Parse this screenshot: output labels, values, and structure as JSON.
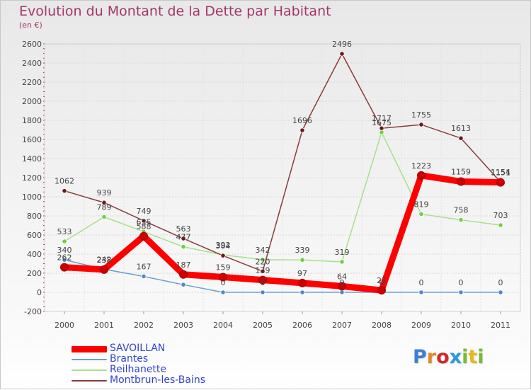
{
  "title": "Evolution du Montant de la Dette par Habitant",
  "subtitle": "(en €)",
  "logo": {
    "text": "Proxiti",
    "letters": [
      "P",
      "r",
      "o",
      "x",
      "i",
      "t",
      "i"
    ]
  },
  "chart_data": {
    "type": "line",
    "title": "Evolution du Montant de la Dette par Habitant",
    "ylabel": "(en €)",
    "xlabel": "",
    "ylim": [
      -200,
      2600
    ],
    "yticks": [
      -200,
      0,
      200,
      400,
      600,
      800,
      1000,
      1200,
      1400,
      1600,
      1800,
      2000,
      2200,
      2400,
      2600
    ],
    "categories": [
      "2000",
      "2001",
      "2002",
      "2003",
      "2004",
      "2005",
      "2006",
      "2007",
      "2008",
      "2009",
      "2010",
      "2011"
    ],
    "grid": true,
    "legend_position": "bottom-left",
    "series": [
      {
        "name": "SAVOILLAN",
        "color": "#ff0000",
        "marker": "#cc0000",
        "emphasis": true,
        "values": [
          262,
          238,
          588,
          187,
          159,
          129,
          97,
          64,
          21,
          1223,
          1159,
          1151
        ]
      },
      {
        "name": "Brantes",
        "color": "#6b9fd1",
        "marker": "#4f8ac6",
        "emphasis": false,
        "values": [
          340,
          242,
          167,
          80,
          0,
          0,
          0,
          0,
          0,
          0,
          0,
          0
        ]
      },
      {
        "name": "Reilhanette",
        "color": "#a8e08a",
        "marker": "#6fcf3f",
        "emphasis": false,
        "values": [
          533,
          789,
          635,
          477,
          392,
          342,
          339,
          319,
          1675,
          819,
          758,
          703
        ]
      },
      {
        "name": "Montbrun-les-Bains",
        "color": "#8b3a3a",
        "marker": "#6b1a1a",
        "emphasis": false,
        "values": [
          1062,
          939,
          749,
          563,
          384,
          220,
          1696,
          2496,
          1717,
          1755,
          1613,
          1154
        ]
      }
    ],
    "data_labels": [
      {
        "series": "Montbrun-les-Bains",
        "text": [
          "1062",
          "939",
          "749",
          "563",
          "384",
          "220",
          "1696",
          "2496",
          "1717",
          "1755",
          "1613",
          "1154"
        ]
      },
      {
        "series": "Reilhanette",
        "text": [
          "533",
          "789",
          "635",
          "477",
          "392",
          "342",
          "339",
          "319",
          "1675",
          "819",
          "758",
          "703"
        ]
      },
      {
        "series": "Brantes",
        "text": [
          "340",
          "242",
          "167",
          "",
          "0",
          "0",
          "",
          "0",
          "0",
          "0",
          "0",
          "0"
        ]
      },
      {
        "series": "SAVOILLAN",
        "text": [
          "262",
          "238",
          "588",
          "187",
          "159",
          "129",
          "97",
          "64",
          "21",
          "1223",
          "1159",
          "1151"
        ]
      }
    ]
  }
}
